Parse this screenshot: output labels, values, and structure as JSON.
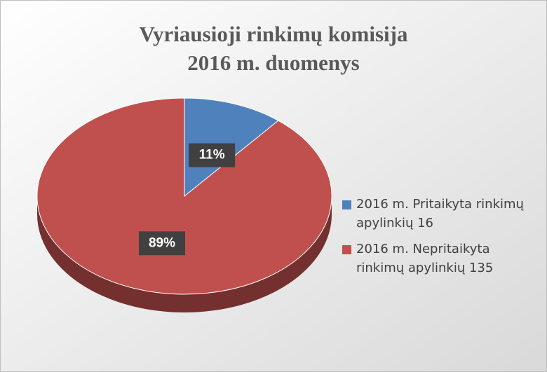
{
  "chart_data": {
    "type": "pie",
    "title": [
      "Vyriausioji rinkimų komisija",
      "2016 m. duomenys"
    ],
    "categories": [
      "2016 m. Pritaikyta rinkimų apylinkių 16",
      "2016 m. Nepritaikyta rinkimų apylinkių 135"
    ],
    "values": [
      11,
      89
    ],
    "value_labels": [
      "11%",
      "89%"
    ],
    "colors": [
      "#4f81bd",
      "#c0504d"
    ],
    "legend": "right"
  }
}
